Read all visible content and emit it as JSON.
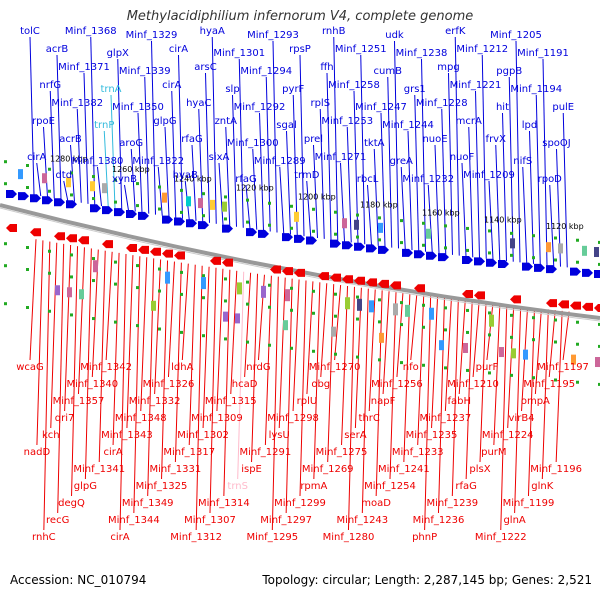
{
  "title": "Methylacidiphilium infernorum V4, complete genome",
  "footer": {
    "accession": "Accession: NC_010794",
    "summary": "Topology: circular; Length: 2,287,145 bp; Genes: 2,521"
  },
  "colors": {
    "forward_strand": "#0000dd",
    "reverse_strand": "#ee0000",
    "rna_label": "#33bbdd",
    "pseudo_label": "#ffbbcc",
    "backbone": "#888888",
    "dots": "#22aa22"
  },
  "scale_labels": [
    "1280 kbp",
    "1260 kbp",
    "1240 kbp",
    "1220 kbp",
    "1200 kbp",
    "1180 kbp",
    "1160 kbp",
    "1140 kbp",
    "1120 kbp"
  ],
  "forward_labels": [
    "tolC",
    "cirA",
    "rpoE",
    "nrfG",
    "acrB",
    "dtd",
    "acrB",
    "Minf_1382",
    "Minf_1371",
    "Minf_1368",
    "Minf_1380",
    "trnP",
    "trnA",
    "glpX",
    "xynB",
    "aroG",
    "Minf_1350",
    "Minf_1339",
    "Minf_1329",
    "Minf_1322",
    "glpG",
    "cirA",
    "cirA",
    "hyaB",
    "rfaG",
    "hyaC",
    "arsC",
    "hyaA",
    "sixA",
    "zntA",
    "slp",
    "Minf_1301",
    "rfaG",
    "Minf_1300",
    "Minf_1292",
    "Minf_1294",
    "Minf_1293",
    "Minf_1289",
    "sgal",
    "pyrF",
    "rpsP",
    "trmD",
    "prel",
    "rplS",
    "ffh",
    "rnhB",
    "Minf_1271",
    "Minf_1253",
    "Minf_1258",
    "Minf_1251",
    "rbcL",
    "tktA",
    "Minf_1247",
    "cumB",
    "udk",
    "greA",
    "Minf_1244",
    "grs1",
    "Minf_1238",
    "Minf_1232",
    "nuoE",
    "Minf_1228",
    "mpg",
    "erfK",
    "nuoF",
    "mcrA",
    "Minf_1221",
    "Minf_1212",
    "Minf_1209",
    "frvX",
    "hit",
    "pgpB",
    "Minf_1205",
    "nifS",
    "lpd",
    "Minf_1194",
    "Minf_1191",
    "rpoD",
    "spoOJ",
    "pulE"
  ],
  "reverse_labels": [
    "wcaG",
    "nadD",
    "rnhC",
    "kch",
    "recG",
    "qri7",
    "degQ",
    "Minf_1357",
    "glpG",
    "Minf_1340",
    "Minf_1341",
    "Minf_1342",
    "cirA",
    "cirA",
    "Minf_1343",
    "Minf_1344",
    "Minf_1348",
    "Minf_1349",
    "Minf_1332",
    "Minf_1325",
    "Minf_1326",
    "Minf_1331",
    "ldhA",
    "Minf_1317",
    "Minf_1312",
    "Minf_1302",
    "Minf_1307",
    "Minf_1309",
    "Minf_1314",
    "Minf_1315",
    "trnS",
    "hcaD",
    "ispE",
    "nrdG",
    "Minf_1291",
    "Minf_1295",
    "lysU",
    "Minf_1297",
    "Minf_1298",
    "Minf_1299",
    "rplU",
    "rpmA",
    "obg",
    "Minf_1269",
    "Minf_1270",
    "Minf_1275",
    "Minf_1280",
    "serA",
    "Minf_1243",
    "thrC",
    "moaD",
    "napF",
    "Minf_1254",
    "Minf_1256",
    "Minf_1241",
    "nfo",
    "Minf_1233",
    "phnP",
    "Minf_1235",
    "Minf_1236",
    "Minf_1237",
    "Minf_1239",
    "fabH",
    "rfaG",
    "Minf_1210",
    "plsX",
    "purF",
    "purM",
    "Minf_1222",
    "Minf_1224",
    "glnA",
    "virB4",
    "Minf_1199",
    "ompA",
    "glnK",
    "Minf_1195",
    "Minf_1196",
    "Minf_1197"
  ]
}
